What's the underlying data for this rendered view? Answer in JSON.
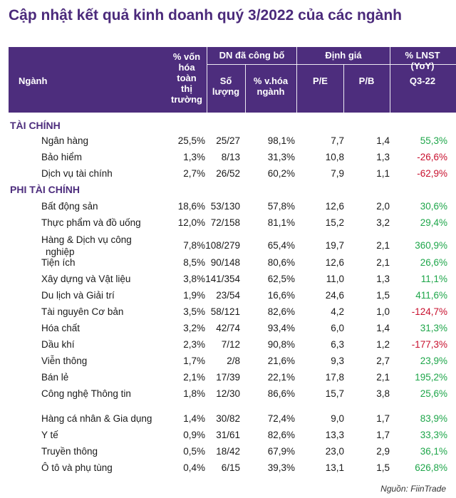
{
  "title": "Cập nhật kết quả kinh doanh quý 3/2022 của các ngành",
  "header": {
    "nganh": "Ngành",
    "von_hoa": [
      "% vốn",
      "hóa",
      "toàn",
      "thị",
      "trường"
    ],
    "dn_cong_bo": "DN đã công bố",
    "so_luong": [
      "Số",
      "lượng"
    ],
    "pct_vhoa_nganh": [
      "% v.hóa",
      "ngành"
    ],
    "dinh_gia": "Định giá",
    "pe": "P/E",
    "pb": "P/B",
    "lnst": [
      "% LNST",
      "(YoY)"
    ],
    "lnst_q": "Q3-22"
  },
  "sections": [
    {
      "name": "TÀI CHÍNH",
      "rows": [
        {
          "name": [
            "Ngân hàng"
          ],
          "von_hoa": "25,5%",
          "so_luong": "25/27",
          "pct": "98,1%",
          "pe": "7,7",
          "pb": "1,4",
          "lnst": "55,3%",
          "sign": "pos"
        },
        {
          "name": [
            "Bảo hiểm"
          ],
          "von_hoa": "1,3%",
          "so_luong": "8/13",
          "pct": "31,3%",
          "pe": "10,8",
          "pb": "1,3",
          "lnst": "-26,6%",
          "sign": "neg"
        },
        {
          "name": [
            "Dịch vụ tài chính"
          ],
          "von_hoa": "2,7%",
          "so_luong": "26/52",
          "pct": "60,2%",
          "pe": "7,9",
          "pb": "1,1",
          "lnst": "-62,9%",
          "sign": "neg"
        }
      ]
    },
    {
      "name": "PHI TÀI CHÍNH",
      "rows": [
        {
          "name": [
            "Bất động sản"
          ],
          "von_hoa": "18,6%",
          "so_luong": "53/130",
          "pct": "57,8%",
          "pe": "12,6",
          "pb": "2,0",
          "lnst": "30,6%",
          "sign": "pos"
        },
        {
          "name": [
            "Thực phẩm và đồ uống"
          ],
          "von_hoa": "12,0%",
          "so_luong": "72/158",
          "pct": "81,1%",
          "pe": "15,2",
          "pb": "3,2",
          "lnst": "29,4%",
          "sign": "pos"
        },
        {
          "name": [
            "Hàng & Dịch vụ công",
            "nghiệp"
          ],
          "von_hoa": "7,8%",
          "so_luong": "108/279",
          "pct": "65,4%",
          "pe": "19,7",
          "pb": "2,1",
          "lnst": "360,9%",
          "sign": "pos"
        },
        {
          "name": [
            "Tiện ích"
          ],
          "von_hoa": "8,5%",
          "so_luong": "90/148",
          "pct": "80,6%",
          "pe": "12,6",
          "pb": "2,1",
          "lnst": "26,6%",
          "sign": "pos"
        },
        {
          "name": [
            "Xây dựng và Vật liệu"
          ],
          "von_hoa": "3,8%",
          "so_luong": "141/354",
          "pct": "62,5%",
          "pe": "11,0",
          "pb": "1,3",
          "lnst": "11,1%",
          "sign": "pos"
        },
        {
          "name": [
            "Du lịch và Giải trí"
          ],
          "von_hoa": "1,9%",
          "so_luong": "23/54",
          "pct": "16,6%",
          "pe": "24,6",
          "pb": "1,5",
          "lnst": "411,6%",
          "sign": "pos"
        },
        {
          "name": [
            "Tài nguyên Cơ bản"
          ],
          "von_hoa": "3,5%",
          "so_luong": "58/121",
          "pct": "82,6%",
          "pe": "4,2",
          "pb": "1,0",
          "lnst": "-124,7%",
          "sign": "neg"
        },
        {
          "name": [
            "Hóa chất"
          ],
          "von_hoa": "3,2%",
          "so_luong": "42/74",
          "pct": "93,4%",
          "pe": "6,0",
          "pb": "1,4",
          "lnst": "31,3%",
          "sign": "pos"
        },
        {
          "name": [
            "Dầu khí"
          ],
          "von_hoa": "2,3%",
          "so_luong": "7/12",
          "pct": "90,8%",
          "pe": "6,3",
          "pb": "1,2",
          "lnst": "-177,3%",
          "sign": "neg"
        },
        {
          "name": [
            "Viễn thông"
          ],
          "von_hoa": "1,7%",
          "so_luong": "2/8",
          "pct": "21,6%",
          "pe": "9,3",
          "pb": "2,7",
          "lnst": "23,9%",
          "sign": "pos"
        },
        {
          "name": [
            "Bán lẻ"
          ],
          "von_hoa": "2,1%",
          "so_luong": "17/39",
          "pct": "22,1%",
          "pe": "17,8",
          "pb": "2,1",
          "lnst": "195,2%",
          "sign": "pos"
        },
        {
          "name": [
            "Công nghệ Thông tin"
          ],
          "von_hoa": "1,8%",
          "so_luong": "12/30",
          "pct": "86,6%",
          "pe": "15,7",
          "pb": "3,8",
          "lnst": "25,6%",
          "sign": "pos"
        },
        {
          "name": [
            "Hàng cá nhân & Gia dụng"
          ],
          "von_hoa": "1,4%",
          "so_luong": "30/82",
          "pct": "72,4%",
          "pe": "9,0",
          "pb": "1,7",
          "lnst": "83,9%",
          "sign": "pos"
        },
        {
          "name": [
            "Y tế"
          ],
          "von_hoa": "0,9%",
          "so_luong": "31/61",
          "pct": "82,6%",
          "pe": "13,3",
          "pb": "1,7",
          "lnst": "33,3%",
          "sign": "pos"
        },
        {
          "name": [
            "Truyền thông"
          ],
          "von_hoa": "0,5%",
          "so_luong": "18/42",
          "pct": "67,9%",
          "pe": "23,0",
          "pb": "2,9",
          "lnst": "36,1%",
          "sign": "pos"
        },
        {
          "name": [
            "Ô tô và phụ tùng"
          ],
          "von_hoa": "0,4%",
          "so_luong": "6/15",
          "pct": "39,3%",
          "pe": "13,1",
          "pb": "1,5",
          "lnst": "626,8%",
          "sign": "pos"
        }
      ]
    }
  ],
  "source": "Nguồn: FiinTrade",
  "colors": {
    "header_bg": "#4d2d7d",
    "title": "#4b2a7b",
    "positive": "#1ea64a",
    "negative": "#c8102e"
  }
}
